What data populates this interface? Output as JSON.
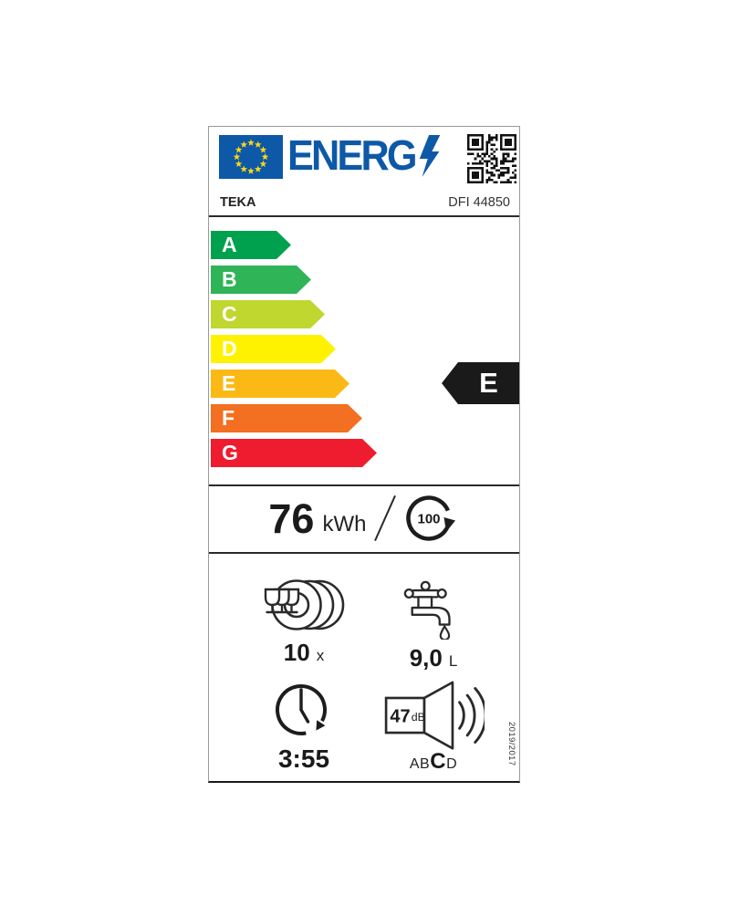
{
  "header": {
    "logo_text": "ENERG",
    "brand": "TEKA",
    "model": "DFI 44850"
  },
  "colors": {
    "eu_blue": "#0d59a7",
    "star_yellow": "#ffd617",
    "ink": "#1a1a1a"
  },
  "icons": {
    "flag": "eu-flag-icon",
    "lightning": "lightning-icon",
    "qr": "qr-code-icon",
    "cycle": "cycle-arrow-icon",
    "place_setting": "place-setting-icon",
    "water_tap": "water-tap-icon",
    "clock": "clock-icon",
    "speaker": "noise-speaker-icon"
  },
  "scale": [
    {
      "grade": "A",
      "color": "#00a14e"
    },
    {
      "grade": "B",
      "color": "#2fb457"
    },
    {
      "grade": "C",
      "color": "#bfd72f"
    },
    {
      "grade": "D",
      "color": "#fff200"
    },
    {
      "grade": "E",
      "color": "#fbb916"
    },
    {
      "grade": "F",
      "color": "#f36f21"
    },
    {
      "grade": "G",
      "color": "#ee1c2e"
    }
  ],
  "rating": {
    "grade": "E",
    "color": "#1a1a1a"
  },
  "energy": {
    "value": "76",
    "unit": "kWh",
    "cycles": "100"
  },
  "capacity": {
    "value": "10",
    "unit": "x"
  },
  "water": {
    "value": "9,0",
    "unit": "L"
  },
  "duration": {
    "value": "3:55"
  },
  "noise": {
    "value": "47",
    "unit": "dB",
    "scale": [
      "A",
      "B",
      "C",
      "D"
    ],
    "selected": "C"
  },
  "regulation": "2019/2017"
}
